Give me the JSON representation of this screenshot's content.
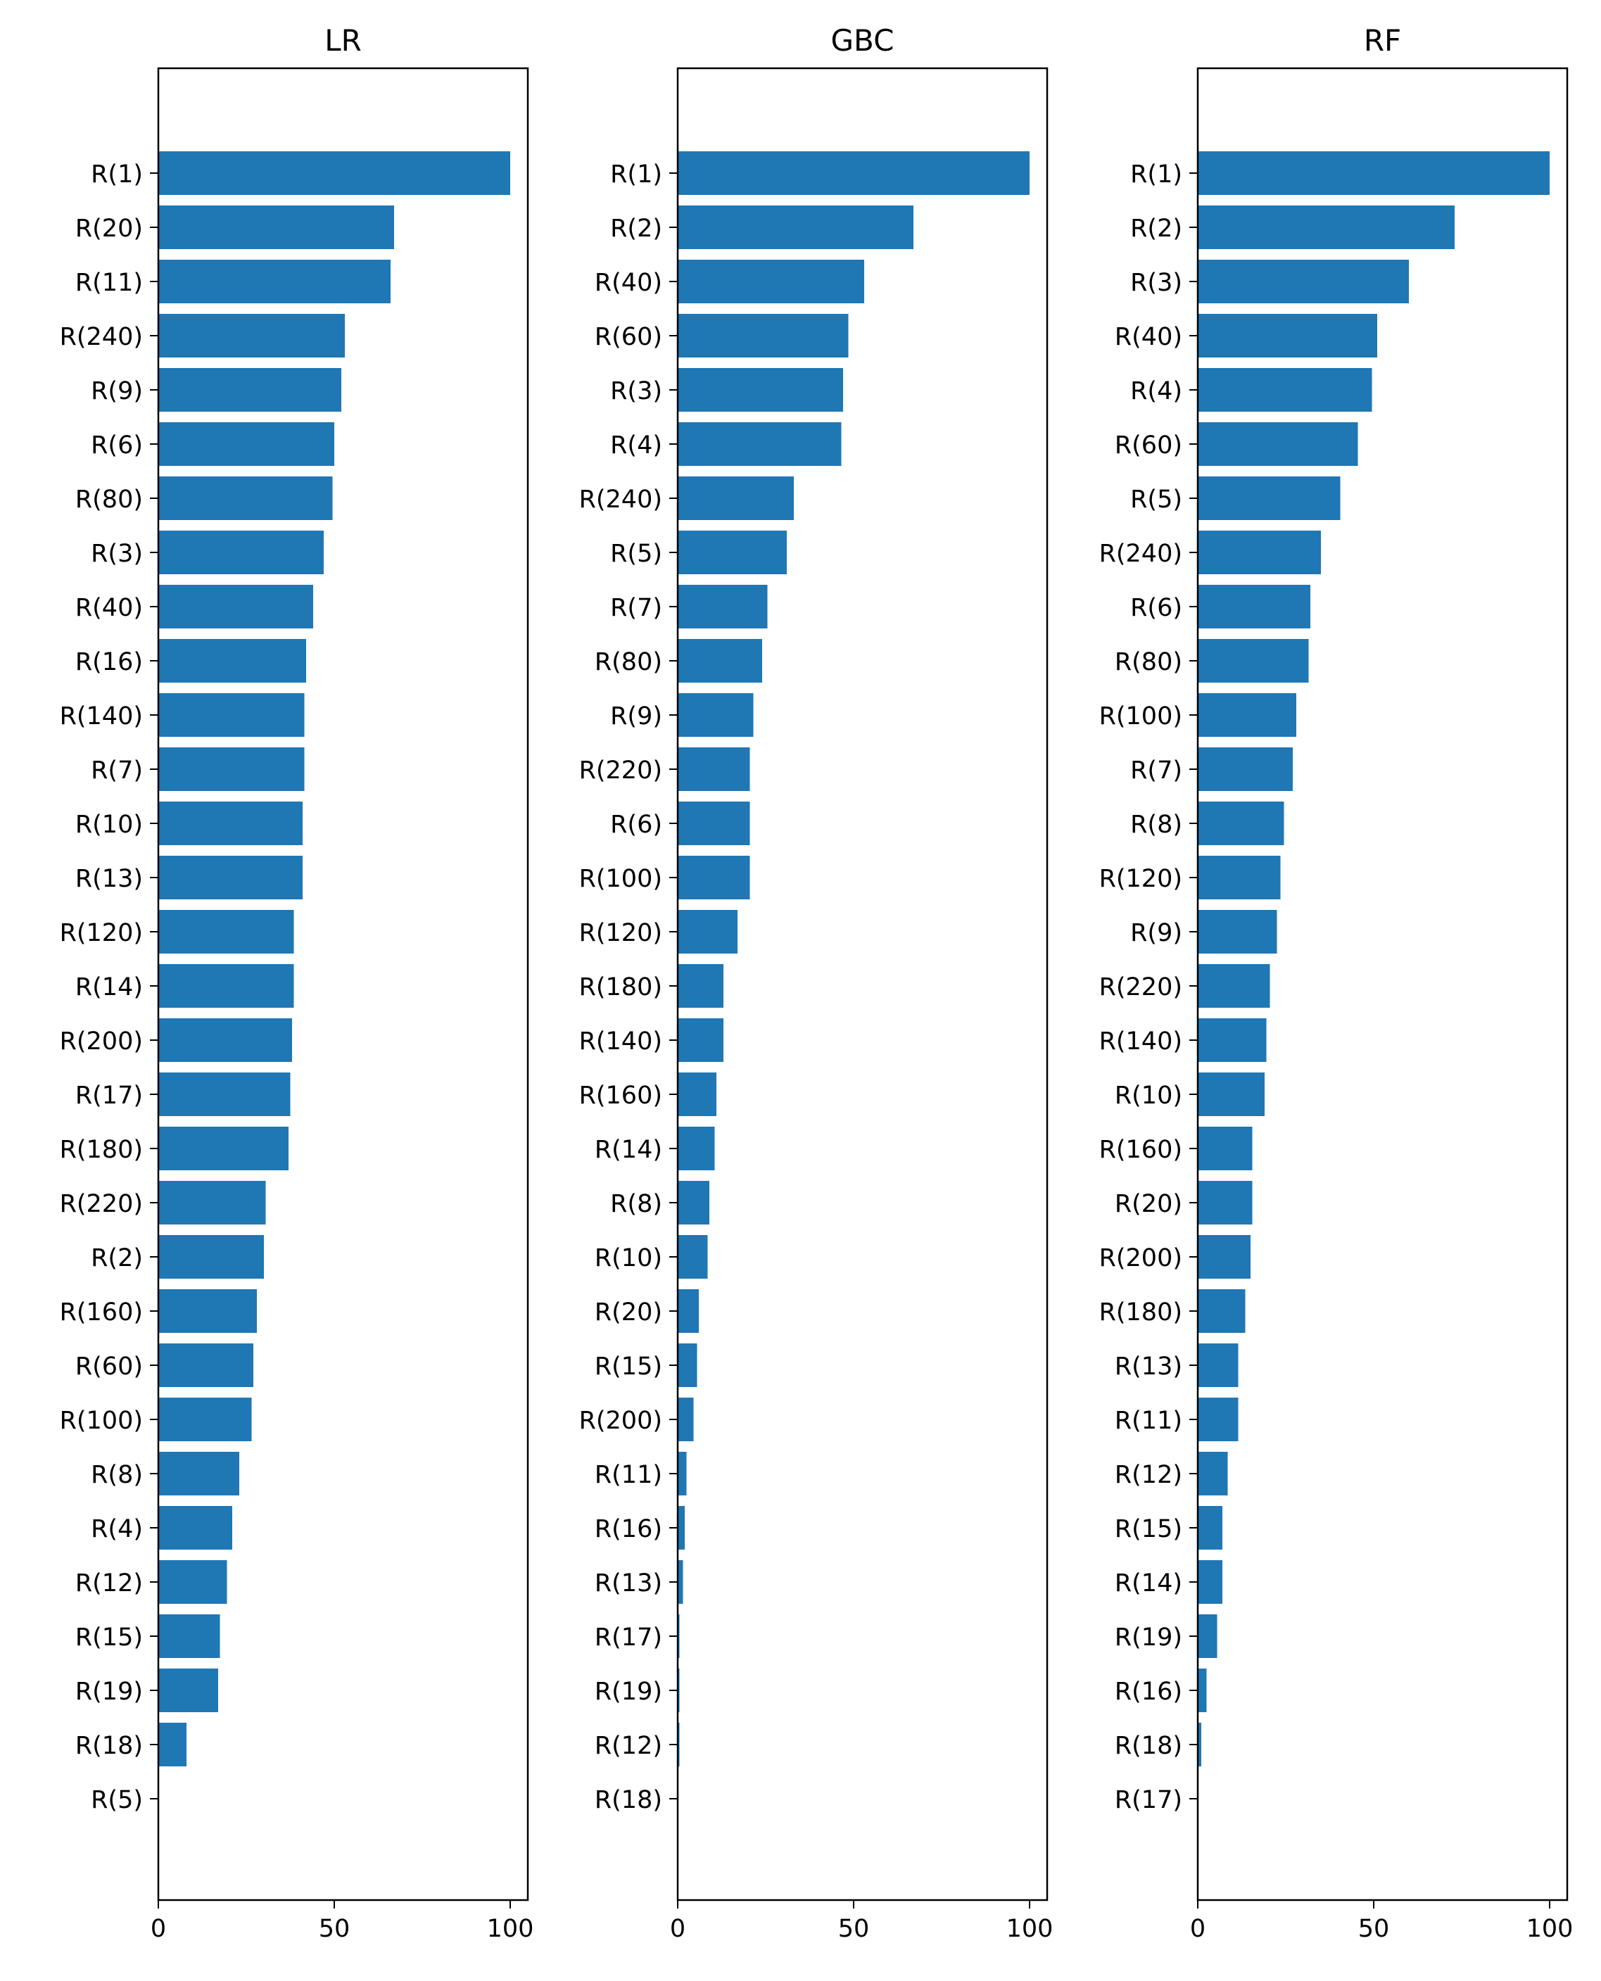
{
  "colors": {
    "bar": "#1f77b4",
    "axis": "#000000",
    "background": "#ffffff"
  },
  "chart_data": [
    {
      "type": "bar",
      "orientation": "horizontal",
      "title": "LR",
      "xlim": [
        0,
        105
      ],
      "xticks": [
        0,
        50,
        100
      ],
      "categories": [
        "R(1)",
        "R(20)",
        "R(11)",
        "R(240)",
        "R(9)",
        "R(6)",
        "R(80)",
        "R(3)",
        "R(40)",
        "R(16)",
        "R(140)",
        "R(7)",
        "R(10)",
        "R(13)",
        "R(120)",
        "R(14)",
        "R(200)",
        "R(17)",
        "R(180)",
        "R(220)",
        "R(2)",
        "R(160)",
        "R(60)",
        "R(100)",
        "R(8)",
        "R(4)",
        "R(12)",
        "R(15)",
        "R(19)",
        "R(18)",
        "R(5)"
      ],
      "values": [
        100,
        67,
        66,
        53,
        52,
        50,
        49.5,
        47,
        44,
        42,
        41.5,
        41.5,
        41,
        41,
        38.5,
        38.5,
        38,
        37.5,
        37,
        30.5,
        30,
        28,
        27,
        26.5,
        23,
        21,
        19.5,
        17.5,
        17,
        8,
        0
      ]
    },
    {
      "type": "bar",
      "orientation": "horizontal",
      "title": "GBC",
      "xlim": [
        0,
        105
      ],
      "xticks": [
        0,
        50,
        100
      ],
      "categories": [
        "R(1)",
        "R(2)",
        "R(40)",
        "R(60)",
        "R(3)",
        "R(4)",
        "R(240)",
        "R(5)",
        "R(7)",
        "R(80)",
        "R(9)",
        "R(220)",
        "R(6)",
        "R(100)",
        "R(120)",
        "R(180)",
        "R(140)",
        "R(160)",
        "R(14)",
        "R(8)",
        "R(10)",
        "R(20)",
        "R(15)",
        "R(200)",
        "R(11)",
        "R(16)",
        "R(13)",
        "R(17)",
        "R(19)",
        "R(12)",
        "R(18)"
      ],
      "values": [
        100,
        67,
        53,
        48.5,
        47,
        46.5,
        33,
        31,
        25.5,
        24,
        21.5,
        20.5,
        20.5,
        20.5,
        17,
        13,
        13,
        11,
        10.5,
        9,
        8.5,
        6,
        5.5,
        4.5,
        2.5,
        2,
        1.5,
        0.5,
        0.5,
        0.5,
        0
      ]
    },
    {
      "type": "bar",
      "orientation": "horizontal",
      "title": "RF",
      "xlim": [
        0,
        105
      ],
      "xticks": [
        0,
        50,
        100
      ],
      "categories": [
        "R(1)",
        "R(2)",
        "R(3)",
        "R(40)",
        "R(4)",
        "R(60)",
        "R(5)",
        "R(240)",
        "R(6)",
        "R(80)",
        "R(100)",
        "R(7)",
        "R(8)",
        "R(120)",
        "R(9)",
        "R(220)",
        "R(140)",
        "R(10)",
        "R(160)",
        "R(20)",
        "R(200)",
        "R(180)",
        "R(13)",
        "R(11)",
        "R(12)",
        "R(15)",
        "R(14)",
        "R(19)",
        "R(16)",
        "R(18)",
        "R(17)"
      ],
      "values": [
        100,
        73,
        60,
        51,
        49.5,
        45.5,
        40.5,
        35,
        32,
        31.5,
        28,
        27,
        24.5,
        23.5,
        22.5,
        20.5,
        19.5,
        19,
        15.5,
        15.5,
        15,
        13.5,
        11.5,
        11.5,
        8.5,
        7,
        7,
        5.5,
        2.5,
        1,
        0
      ]
    }
  ]
}
